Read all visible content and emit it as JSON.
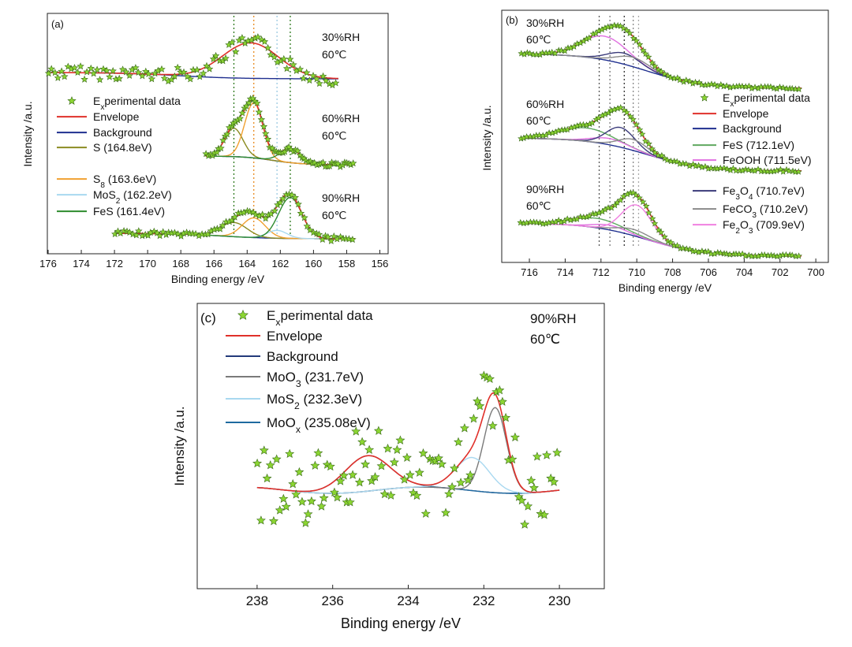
{
  "colors": {
    "experimental": "#8BD532",
    "envelope": "#E0302A",
    "background_ab": "#1F2F8F",
    "background_c": "#233A7A",
    "S": "#8B8B22",
    "S8": "#F0A030",
    "MoS2": "#A8D8F0",
    "FeS_a": "#2E8B2E",
    "FeS_b": "#5FA85F",
    "FeOOH": "#E070E0",
    "Fe3O4": "#3A3A7A",
    "FeCO3": "#8A8A8A",
    "Fe2O3": "#F080E0",
    "MoO3": "#7A7A7A",
    "MoOx": "#1E6AA0"
  },
  "chart_data": [
    {
      "panel_label": "(a)",
      "type": "line",
      "xlabel": "Binding energy /eV",
      "ylabel": "Intensity /a.u.",
      "xlim": [
        176,
        155.5
      ],
      "x_reversed": true,
      "xticks": [
        "176",
        "174",
        "172",
        "170",
        "168",
        "166",
        "164",
        "162",
        "160",
        "158",
        "156"
      ],
      "reference_lines": [
        164.8,
        163.6,
        162.2,
        161.4
      ],
      "legend": [
        {
          "label": "Experimental data",
          "kind": "star"
        },
        {
          "label": "Envelope",
          "kind": "line",
          "color_key": "envelope"
        },
        {
          "label": "Background",
          "kind": "line",
          "color_key": "background_ab"
        },
        {
          "label": "S (164.8eV)",
          "kind": "line",
          "color_key": "S"
        },
        {
          "label": "S8 (163.6eV)",
          "kind": "line",
          "color_key": "S8"
        },
        {
          "label": "MoS2 (162.2eV)",
          "kind": "line",
          "color_key": "MoS2"
        },
        {
          "label": "FeS (161.4eV)",
          "kind": "line",
          "color_key": "FeS_a"
        }
      ],
      "spectra": [
        {
          "condition": [
            "30%RH",
            "60℃"
          ],
          "x_range": [
            176,
            158.5
          ],
          "baseline_left": 92,
          "baseline_right": 100,
          "peaks": [
            {
              "component": "Envelope",
              "center": 163.8,
              "width": 1.7,
              "height": 45
            }
          ],
          "experimental": {
            "n": 90,
            "noise": 9
          }
        },
        {
          "condition": [
            "60%RH",
            "60℃"
          ],
          "x_range": [
            166.5,
            157.5
          ],
          "baseline_left": 198,
          "baseline_right": 209,
          "peaks": [
            {
              "component": "S (164.8eV)",
              "center": 164.8,
              "width": 0.55,
              "height": 36
            },
            {
              "component": "S8 (163.6eV)",
              "center": 163.6,
              "width": 0.55,
              "height": 70
            },
            {
              "component": "FeS (161.4eV)",
              "center": 161.4,
              "width": 0.6,
              "height": 18
            }
          ],
          "experimental": {
            "n": 70,
            "noise": 3
          }
        },
        {
          "condition": [
            "90%RH",
            "60℃"
          ],
          "x_range": [
            172,
            157.5
          ],
          "baseline_left": 296,
          "baseline_right": 303,
          "peaks": [
            {
              "component": "S (164.8eV)",
              "center": 164.8,
              "width": 0.8,
              "height": 18
            },
            {
              "component": "S8 (163.6eV)",
              "center": 163.6,
              "width": 0.7,
              "height": 25
            },
            {
              "component": "MoS2 (162.2eV)",
              "center": 162.2,
              "width": 0.6,
              "height": 10
            },
            {
              "component": "FeS (161.4eV)",
              "center": 161.4,
              "width": 0.7,
              "height": 52
            }
          ],
          "experimental": {
            "n": 80,
            "noise": 3
          }
        }
      ]
    },
    {
      "panel_label": "(b)",
      "type": "line",
      "xlabel": "Binding energy /eV",
      "ylabel": "Intensity /a.u.",
      "xlim": [
        717.5,
        699.3
      ],
      "x_reversed": true,
      "xticks": [
        "716",
        "714",
        "712",
        "710",
        "708",
        "706",
        "704",
        "702",
        "700"
      ],
      "reference_lines": [
        712.1,
        711.5,
        710.7,
        710.2,
        709.9
      ],
      "legend": [
        {
          "label": "Experimental data",
          "kind": "star"
        },
        {
          "label": "Envelope",
          "kind": "line",
          "color_key": "envelope"
        },
        {
          "label": "Background",
          "kind": "line",
          "color_key": "background_ab"
        },
        {
          "label": "FeS (712.1eV)",
          "kind": "line",
          "color_key": "FeS_b"
        },
        {
          "label": "FeOOH (711.5eV)",
          "kind": "line",
          "color_key": "FeOOH"
        },
        {
          "label": "Fe3O4 (710.7eV)",
          "kind": "line",
          "color_key": "Fe3O4"
        },
        {
          "label": "FeCO3 (710.2eV)",
          "kind": "line",
          "color_key": "FeCO3"
        },
        {
          "label": "Fe2O3 (709.9eV)",
          "kind": "line",
          "color_key": "Fe2O3"
        }
      ],
      "spectra": [
        {
          "condition": [
            "30%RH",
            "60℃"
          ],
          "x_range": [
            716.5,
            700.8
          ],
          "baseline_left": 68,
          "baseline_right": 112,
          "peaks": [
            {
              "component": "FeOOH (711.5eV)",
              "center": 711.8,
              "width": 1.3,
              "height": 30
            },
            {
              "component": "Fe3O4 (710.7eV)",
              "center": 710.7,
              "width": 0.9,
              "height": 14
            },
            {
              "component": "FeCO3 (710.2eV)",
              "center": 710.2,
              "width": 0.9,
              "height": 12
            }
          ],
          "experimental": {
            "n": 90,
            "noise": 1.5
          }
        },
        {
          "condition": [
            "60%RH",
            "60℃"
          ],
          "x_range": [
            716.5,
            700.8
          ],
          "baseline_left": 175,
          "baseline_right": 217,
          "peaks": [
            {
              "component": "FeS (712.1eV)",
              "center": 712.8,
              "width": 1.5,
              "height": 17
            },
            {
              "component": "FeOOH (711.5eV)",
              "center": 711.5,
              "width": 1.0,
              "height": 8
            },
            {
              "component": "Fe3O4 (710.7eV)",
              "center": 710.9,
              "width": 0.8,
              "height": 25
            },
            {
              "component": "FeCO3 (710.2eV)",
              "center": 710.2,
              "width": 0.8,
              "height": 14
            }
          ],
          "experimental": {
            "n": 90,
            "noise": 1.5
          }
        },
        {
          "condition": [
            "90%RH",
            "60℃"
          ],
          "x_range": [
            716.5,
            700.8
          ],
          "baseline_left": 283,
          "baseline_right": 325,
          "peaks": [
            {
              "component": "FeS (712.1eV)",
              "center": 712.2,
              "width": 1.4,
              "height": 12
            },
            {
              "component": "FeOOH (711.5eV)",
              "center": 711.5,
              "width": 0.9,
              "height": 6
            },
            {
              "component": "FeCO3 (710.2eV)",
              "center": 710.2,
              "width": 0.9,
              "height": 8
            },
            {
              "component": "Fe2O3 (709.9eV)",
              "center": 710.0,
              "width": 0.85,
              "height": 40
            }
          ],
          "experimental": {
            "n": 90,
            "noise": 1.5
          }
        }
      ]
    },
    {
      "panel_label": "(c)",
      "type": "line",
      "xlabel": "Binding energy /eV",
      "ylabel": "Intensity /a.u.",
      "xlim": [
        239,
        229
      ],
      "x_reversed": true,
      "xticks": [
        "238",
        "236",
        "234",
        "232",
        "230"
      ],
      "condition": [
        "90%RH",
        "60℃"
      ],
      "legend": [
        {
          "label": "Experimental data",
          "kind": "star"
        },
        {
          "label": "Envelope",
          "kind": "line",
          "color_key": "envelope"
        },
        {
          "label": "Background",
          "kind": "line",
          "color_key": "background_c"
        },
        {
          "label": "MoO3 (231.7eV)",
          "kind": "line",
          "color_key": "MoO3"
        },
        {
          "label": "MoS2 (232.3eV)",
          "kind": "line",
          "color_key": "MoS2"
        },
        {
          "label": "MoOx (235.08eV)",
          "kind": "line",
          "color_key": "MoOx"
        }
      ],
      "spectra": [
        {
          "x_range": [
            238,
            230
          ],
          "baseline": 622,
          "peaks": [
            {
              "component": "MoOx (235.08eV)",
              "center": 235.08,
              "width": 0.6,
              "height": 45
            },
            {
              "component": "MoO3 (231.7eV)",
              "center": 231.7,
              "width": 0.3,
              "height": 108
            },
            {
              "component": "MoS2 (232.3eV)",
              "center": 232.3,
              "width": 0.45,
              "height": 42
            }
          ],
          "experimental": {
            "n": 95,
            "noise": 48
          }
        }
      ]
    }
  ]
}
